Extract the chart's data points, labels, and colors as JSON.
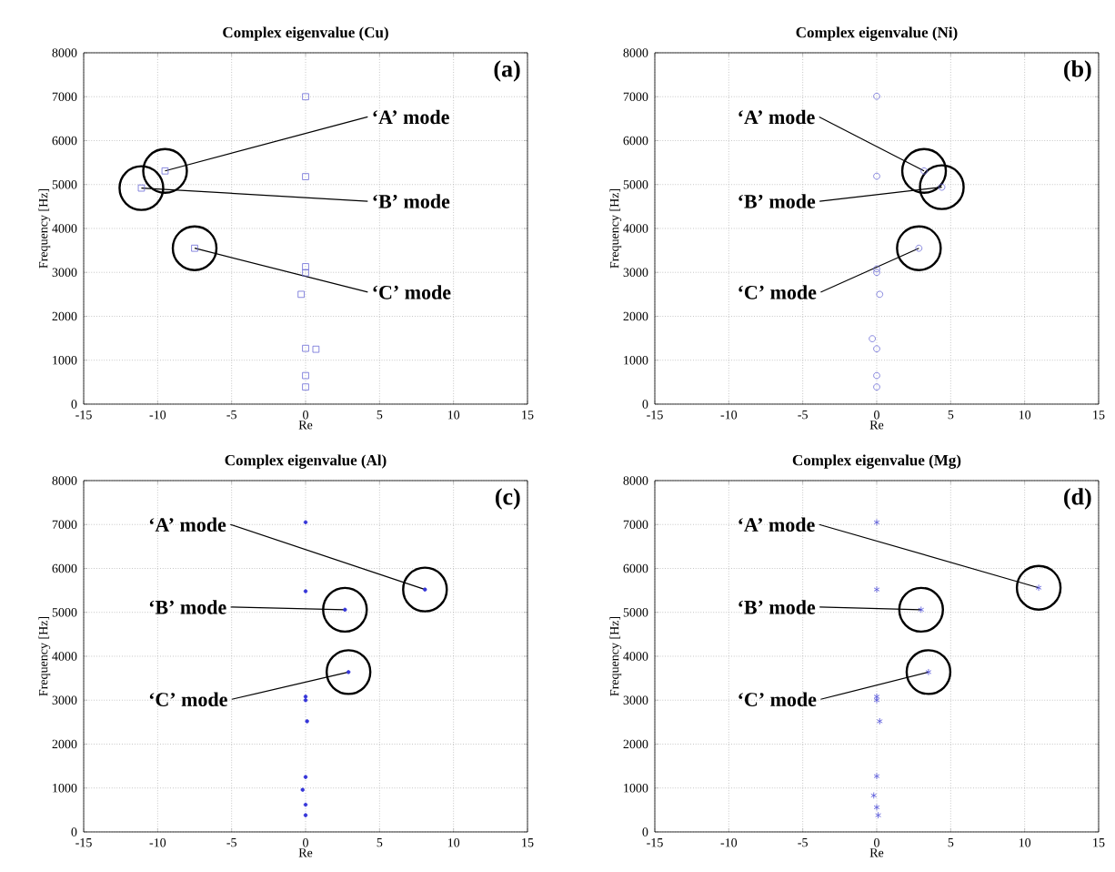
{
  "chart_data": [
    {
      "type": "scatter",
      "title": "Complex eigenvalue (Cu)",
      "xlabel": "Re",
      "ylabel": "Frequency [Hz]",
      "color": "#6b6bd6",
      "marker": "square",
      "grid": true,
      "xlim": [
        -15,
        15
      ],
      "ylim": [
        0,
        8000
      ],
      "xticks": [
        -15,
        -10,
        -5,
        0,
        5,
        10,
        15
      ],
      "yticks": [
        0,
        1000,
        2000,
        3000,
        4000,
        5000,
        6000,
        7000,
        8000
      ],
      "x": [
        0,
        -9.5,
        0,
        -11.1,
        -7.5,
        0,
        0,
        -0.3,
        0,
        0.7,
        0,
        0
      ],
      "values": [
        7000,
        5310,
        5180,
        4920,
        3550,
        3130,
        2990,
        2500,
        1270,
        1250,
        650,
        390
      ],
      "annotations": [
        "(a)",
        {
          "text": "‘A’ mode",
          "x": -9.5,
          "y": 5310
        },
        {
          "text": "‘B’ mode",
          "x": -11.1,
          "y": 4920
        },
        {
          "text": "‘C’ mode",
          "x": -7.5,
          "y": 3550
        }
      ]
    },
    {
      "type": "scatter",
      "title": "Complex eigenvalue (Ni)",
      "xlabel": "Re",
      "ylabel": "Frequency [Hz]",
      "color": "#6b6bd6",
      "marker": "circle",
      "grid": true,
      "xlim": [
        -15,
        15
      ],
      "ylim": [
        0,
        8000
      ],
      "xticks": [
        -15,
        -10,
        -5,
        0,
        5,
        10,
        15
      ],
      "yticks": [
        0,
        1000,
        2000,
        3000,
        4000,
        5000,
        6000,
        7000,
        8000
      ],
      "x": [
        0,
        3.2,
        0,
        4.4,
        2.85,
        0,
        0,
        0.2,
        -0.3,
        0,
        0,
        0
      ],
      "values": [
        7010,
        5310,
        5190,
        4940,
        3550,
        3080,
        3000,
        2500,
        1490,
        1260,
        650,
        390
      ],
      "annotations": [
        "(b)",
        {
          "text": "‘A’ mode",
          "x": 3.2,
          "y": 5310
        },
        {
          "text": "‘B’ mode",
          "x": 4.4,
          "y": 4940
        },
        {
          "text": "‘C’ mode",
          "x": 2.85,
          "y": 3550
        }
      ]
    },
    {
      "type": "scatter",
      "title": "Complex eigenvalue (Al)",
      "xlabel": "Re",
      "ylabel": "Frequency [Hz]",
      "color": "#3535d8",
      "marker": "circle",
      "grid": true,
      "xlim": [
        -15,
        15
      ],
      "ylim": [
        0,
        8000
      ],
      "xticks": [
        -15,
        -10,
        -5,
        0,
        5,
        10,
        15
      ],
      "yticks": [
        0,
        1000,
        2000,
        3000,
        4000,
        5000,
        6000,
        7000,
        8000
      ],
      "x": [
        0,
        8.07,
        0,
        2.66,
        2.9,
        0,
        0,
        0.1,
        0,
        -0.2,
        0,
        0
      ],
      "values": [
        7050,
        5520,
        5480,
        5060,
        3640,
        3080,
        3000,
        2520,
        1250,
        960,
        620,
        380
      ],
      "annotations": [
        "(c)",
        {
          "text": "‘A’ mode",
          "x": 8.07,
          "y": 5520
        },
        {
          "text": "‘B’ mode",
          "x": 2.66,
          "y": 5060
        },
        {
          "text": "‘C’ mode",
          "x": 2.9,
          "y": 3640
        }
      ]
    },
    {
      "type": "scatter",
      "title": "Complex eigenvalue (Mg)",
      "xlabel": "Re",
      "ylabel": "Frequency [Hz]",
      "color": "#5050d8",
      "marker": "cross",
      "grid": true,
      "xlim": [
        -15,
        15
      ],
      "ylim": [
        0,
        8000
      ],
      "xticks": [
        -15,
        -10,
        -5,
        0,
        5,
        10,
        15
      ],
      "yticks": [
        0,
        1000,
        2000,
        3000,
        4000,
        5000,
        6000,
        7000,
        8000
      ],
      "x": [
        0,
        10.95,
        0,
        3.0,
        3.5,
        0,
        0,
        0.2,
        0,
        -0.2,
        0,
        0.1
      ],
      "values": [
        7050,
        5560,
        5520,
        5060,
        3640,
        3080,
        3000,
        2520,
        1270,
        830,
        560,
        380
      ],
      "annotations": [
        "(d)",
        {
          "text": "‘A’ mode",
          "x": 10.95,
          "y": 5560
        },
        {
          "text": "‘B’ mode",
          "x": 3.0,
          "y": 5060
        },
        {
          "text": "‘C’ mode",
          "x": 3.5,
          "y": 3640
        }
      ]
    }
  ]
}
